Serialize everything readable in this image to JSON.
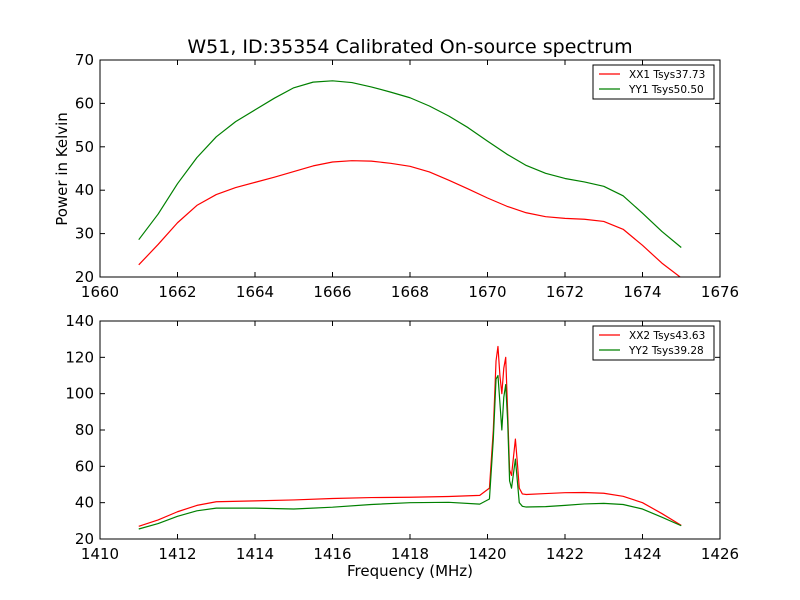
{
  "chart_data": [
    {
      "type": "line",
      "title": "W51, ID:35354 Calibrated On-source spectrum",
      "xlabel": "",
      "ylabel": "Power in Kelvin",
      "xlim": [
        1660,
        1676
      ],
      "ylim": [
        20,
        70
      ],
      "xticks": [
        "1660",
        "1662",
        "1664",
        "1666",
        "1668",
        "1670",
        "1672",
        "1674",
        "1676"
      ],
      "yticks": [
        "20",
        "30",
        "40",
        "50",
        "60",
        "70"
      ],
      "grid": false,
      "legend_position": "top-right",
      "series": [
        {
          "name": "XX1 Tsys37.73",
          "color": "#ff0000",
          "x": [
            1661.0,
            1661.5,
            1662.0,
            1662.5,
            1663.0,
            1663.5,
            1664.0,
            1664.5,
            1665.0,
            1665.5,
            1666.0,
            1666.5,
            1667.0,
            1667.5,
            1668.0,
            1668.5,
            1669.0,
            1669.5,
            1670.0,
            1670.5,
            1671.0,
            1671.5,
            1672.0,
            1672.5,
            1673.0,
            1673.5,
            1674.0,
            1674.5,
            1675.0
          ],
          "y": [
            22.8,
            27.5,
            32.5,
            36.5,
            39.0,
            40.6,
            41.8,
            43.0,
            44.3,
            45.6,
            46.5,
            46.8,
            46.7,
            46.2,
            45.5,
            44.2,
            42.3,
            40.3,
            38.2,
            36.3,
            34.8,
            33.9,
            33.5,
            33.3,
            32.8,
            31.0,
            27.3,
            23.2,
            19.8
          ]
        },
        {
          "name": "YY1 Tsys50.50",
          "color": "#008000",
          "x": [
            1661.0,
            1661.5,
            1662.0,
            1662.5,
            1663.0,
            1663.5,
            1664.0,
            1664.5,
            1665.0,
            1665.5,
            1666.0,
            1666.5,
            1667.0,
            1667.5,
            1668.0,
            1668.5,
            1669.0,
            1669.5,
            1670.0,
            1670.5,
            1671.0,
            1671.5,
            1672.0,
            1672.5,
            1673.0,
            1673.5,
            1674.0,
            1674.5,
            1675.0
          ],
          "y": [
            28.6,
            34.5,
            41.5,
            47.5,
            52.3,
            55.8,
            58.5,
            61.2,
            63.6,
            64.9,
            65.2,
            64.8,
            63.8,
            62.6,
            61.3,
            59.4,
            57.1,
            54.4,
            51.3,
            48.3,
            45.7,
            43.9,
            42.7,
            41.9,
            40.9,
            38.7,
            34.7,
            30.5,
            26.8
          ]
        }
      ]
    },
    {
      "type": "line",
      "title": "",
      "xlabel": "Frequency (MHz)",
      "ylabel": "",
      "xlim": [
        1410,
        1426
      ],
      "ylim": [
        20,
        140
      ],
      "xticks": [
        "1410",
        "1412",
        "1414",
        "1416",
        "1418",
        "1420",
        "1422",
        "1424",
        "1426"
      ],
      "yticks": [
        "20",
        "40",
        "60",
        "80",
        "100",
        "120",
        "140"
      ],
      "grid": false,
      "legend_position": "top-right",
      "series": [
        {
          "name": "XX2 Tsys43.63",
          "color": "#ff0000",
          "x": [
            1411.0,
            1411.5,
            1412.0,
            1412.5,
            1413.0,
            1414.0,
            1415.0,
            1416.0,
            1417.0,
            1418.0,
            1419.0,
            1419.8,
            1420.05,
            1420.15,
            1420.22,
            1420.27,
            1420.32,
            1420.37,
            1420.42,
            1420.47,
            1420.52,
            1420.57,
            1420.62,
            1420.67,
            1420.72,
            1420.77,
            1420.82,
            1420.9,
            1421.0,
            1421.5,
            1422.0,
            1422.5,
            1423.0,
            1423.5,
            1424.0,
            1424.5,
            1425.0
          ],
          "y": [
            27.0,
            30.5,
            35.0,
            38.5,
            40.5,
            41.0,
            41.5,
            42.3,
            42.8,
            43.0,
            43.4,
            44.0,
            48.0,
            80.0,
            118.0,
            126.0,
            110.0,
            100.0,
            114.0,
            120.0,
            90.0,
            58.0,
            55.0,
            65.0,
            75.0,
            62.0,
            48.0,
            44.8,
            44.5,
            45.0,
            45.5,
            45.6,
            45.2,
            43.5,
            40.0,
            34.0,
            27.5
          ]
        },
        {
          "name": "YY2 Tsys39.28",
          "color": "#008000",
          "x": [
            1411.0,
            1411.5,
            1412.0,
            1412.5,
            1413.0,
            1414.0,
            1415.0,
            1416.0,
            1417.0,
            1418.0,
            1419.0,
            1419.8,
            1420.05,
            1420.15,
            1420.22,
            1420.27,
            1420.32,
            1420.37,
            1420.42,
            1420.47,
            1420.52,
            1420.57,
            1420.62,
            1420.67,
            1420.72,
            1420.77,
            1420.82,
            1420.9,
            1421.0,
            1421.5,
            1422.0,
            1422.5,
            1423.0,
            1423.5,
            1424.0,
            1424.5,
            1425.0
          ],
          "y": [
            25.5,
            28.5,
            32.5,
            35.5,
            37.0,
            37.0,
            36.5,
            37.5,
            39.0,
            40.0,
            40.2,
            39.2,
            42.0,
            75.0,
            108.0,
            110.0,
            95.0,
            80.0,
            98.0,
            105.0,
            85.0,
            52.0,
            48.0,
            56.0,
            64.0,
            52.0,
            40.0,
            38.0,
            37.6,
            37.8,
            38.5,
            39.3,
            39.6,
            39.0,
            36.5,
            32.0,
            27.3
          ]
        }
      ]
    }
  ]
}
